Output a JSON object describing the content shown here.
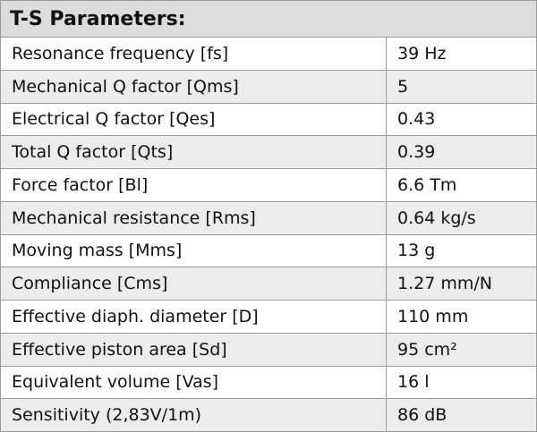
{
  "table": {
    "title": "T-S Parameters:",
    "rows": [
      [
        "Resonance frequency [fs]",
        "39 Hz"
      ],
      [
        "Mechanical Q factor [Qms]",
        "5"
      ],
      [
        "Electrical Q factor [Qes]",
        "0.43"
      ],
      [
        "Total Q factor [Qts]",
        "0.39"
      ],
      [
        "Force factor [Bl]",
        "6.6 Tm"
      ],
      [
        "Mechanical resistance [Rms]",
        "0.64 kg/s"
      ],
      [
        "Moving mass [Mms]",
        "13 g"
      ],
      [
        "Compliance [Cms]",
        "1.27 mm/N"
      ],
      [
        "Effective diaph. diameter [D]",
        "110 mm"
      ],
      [
        "Effective piston area [Sd]",
        "95 cm²"
      ],
      [
        "Equivalent volume [Vas]",
        "16 l"
      ],
      [
        "Sensitivity (2,83V/1m)",
        "86 dB"
      ]
    ]
  }
}
